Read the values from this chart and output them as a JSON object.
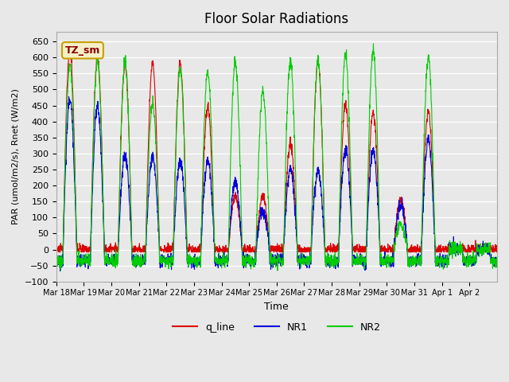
{
  "title": "Floor Solar Radiations",
  "xlabel": "Time",
  "ylabel": "PAR (umol/m2/s), Rnet (W/m2)",
  "ylim": [
    -100,
    680
  ],
  "yticks": [
    -100,
    -50,
    0,
    50,
    100,
    150,
    200,
    250,
    300,
    350,
    400,
    450,
    500,
    550,
    600,
    650
  ],
  "xtick_labels": [
    "Mar 18",
    "Mar 19",
    "Mar 20",
    "Mar 21",
    "Mar 22",
    "Mar 23",
    "Mar 24",
    "Mar 25",
    "Mar 26",
    "Mar 27",
    "Mar 28",
    "Mar 29",
    "Mar 30",
    "Mar 31",
    "Apr 1",
    "Apr 2"
  ],
  "annotation_text": "TZ_sm",
  "annotation_box_color": "#f5f0c8",
  "annotation_border_color": "#c8a000",
  "annotation_text_color": "#8b0000",
  "background_color": "#e8e8e8",
  "plot_bg_color": "#e8e8e8",
  "line_colors": {
    "q_line": "#dd0000",
    "NR1": "#0000dd",
    "NR2": "#00cc00"
  },
  "legend_labels": [
    "q_line",
    "NR1",
    "NR2"
  ],
  "num_days": 16,
  "pts_per_day": 144
}
